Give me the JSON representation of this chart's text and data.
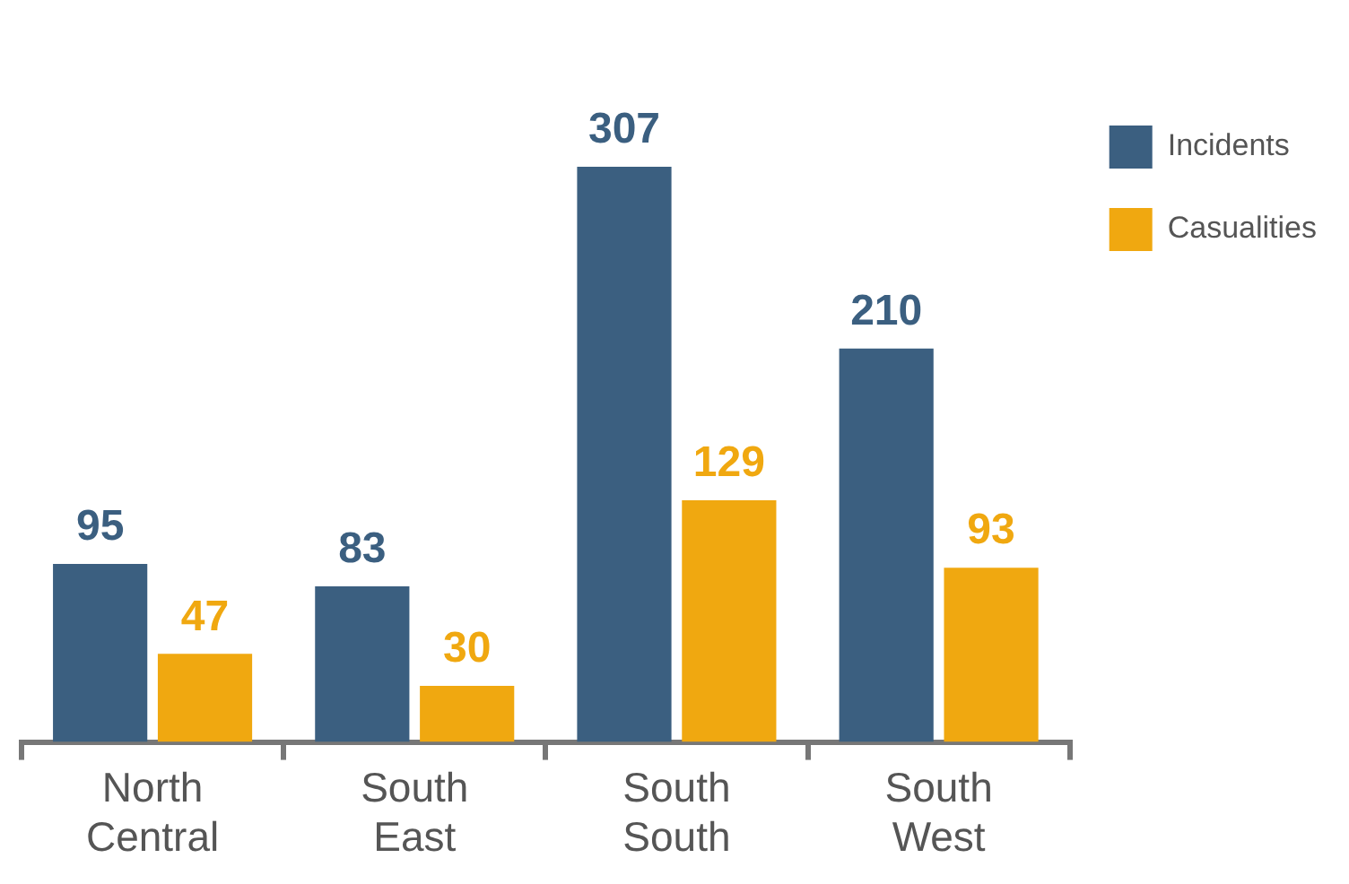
{
  "chart_data": {
    "type": "bar",
    "categories": [
      "North Central",
      "South East",
      "South South",
      "South West"
    ],
    "series": [
      {
        "name": "Incidents",
        "color": "#3b5f80",
        "values": [
          95,
          83,
          307,
          210
        ]
      },
      {
        "name": "Casualities",
        "color": "#f0a810",
        "values": [
          47,
          30,
          129,
          93
        ]
      }
    ],
    "tick_labels": "x",
    "data_labels": true,
    "legend": "top right",
    "grid": false
  }
}
